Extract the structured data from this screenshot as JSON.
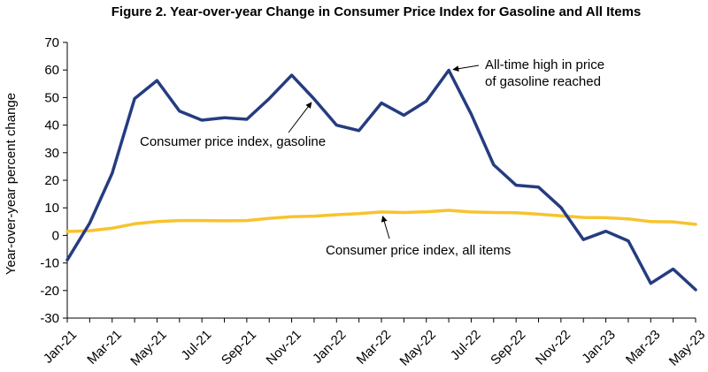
{
  "chart_data": {
    "type": "line",
    "title": "Figure 2. Year-over-year Change in Consumer Price Index for Gasoline and All Items",
    "xlabel": "",
    "ylabel": "Year-over-year percent change",
    "ylim": [
      -30,
      70
    ],
    "yticks": [
      70,
      60,
      50,
      40,
      30,
      20,
      10,
      0,
      -10,
      -20,
      -30
    ],
    "grid": false,
    "legend": "none",
    "x": [
      "Jan-21",
      "Feb-21",
      "Mar-21",
      "Apr-21",
      "May-21",
      "Jun-21",
      "Jul-21",
      "Aug-21",
      "Sep-21",
      "Oct-21",
      "Nov-21",
      "Dec-21",
      "Jan-22",
      "Feb-22",
      "Mar-22",
      "Apr-22",
      "May-22",
      "Jun-22",
      "Jul-22",
      "Aug-22",
      "Sep-22",
      "Oct-22",
      "Nov-22",
      "Dec-22",
      "Jan-23",
      "Feb-23",
      "Mar-23",
      "Apr-23",
      "May-23"
    ],
    "xtick_labels": [
      "Jan-21",
      "Mar-21",
      "May-21",
      "Jul-21",
      "Sep-21",
      "Nov-21",
      "Jan-22",
      "Mar-22",
      "May-22",
      "Jul-22",
      "Sep-22",
      "Nov-22",
      "Jan-23",
      "Mar-23",
      "May-23"
    ],
    "series": [
      {
        "name": "Consumer price index, gasoline",
        "color": "#253C80",
        "values": [
          -8.9,
          4.5,
          22.5,
          49.6,
          56.2,
          45.1,
          41.8,
          42.7,
          42.1,
          49.6,
          58.1,
          49.5,
          40.0,
          38.0,
          48.0,
          43.6,
          48.7,
          59.9,
          44.0,
          25.6,
          18.2,
          17.5,
          10.1,
          -1.5,
          1.5,
          -2.0,
          -17.4,
          -12.2,
          -19.7
        ]
      },
      {
        "name": "Consumer price index, all items",
        "color": "#F7C32E",
        "values": [
          1.4,
          1.7,
          2.6,
          4.2,
          5.0,
          5.4,
          5.4,
          5.3,
          5.4,
          6.2,
          6.8,
          7.0,
          7.5,
          7.9,
          8.5,
          8.3,
          8.6,
          9.1,
          8.5,
          8.3,
          8.2,
          7.7,
          7.1,
          6.5,
          6.4,
          6.0,
          5.0,
          4.9,
          4.0
        ]
      }
    ],
    "annotations": [
      {
        "text": "All-time high in price of gasoline reached",
        "lines": [
          "All-time high in price",
          "of gasoline reached"
        ],
        "points_to": {
          "series": 0,
          "x": "Jun-22",
          "y": 59.9
        }
      },
      {
        "text": "Consumer price index, gasoline",
        "lines": [
          "Consumer price index, gasoline"
        ],
        "points_to": {
          "series": 0,
          "x": "Dec-21",
          "y": 49.5
        }
      },
      {
        "text": "Consumer price index, all items",
        "lines": [
          "Consumer price index, all items"
        ],
        "points_to": {
          "series": 1,
          "x": "Mar-22",
          "y": 8.5
        }
      }
    ]
  }
}
